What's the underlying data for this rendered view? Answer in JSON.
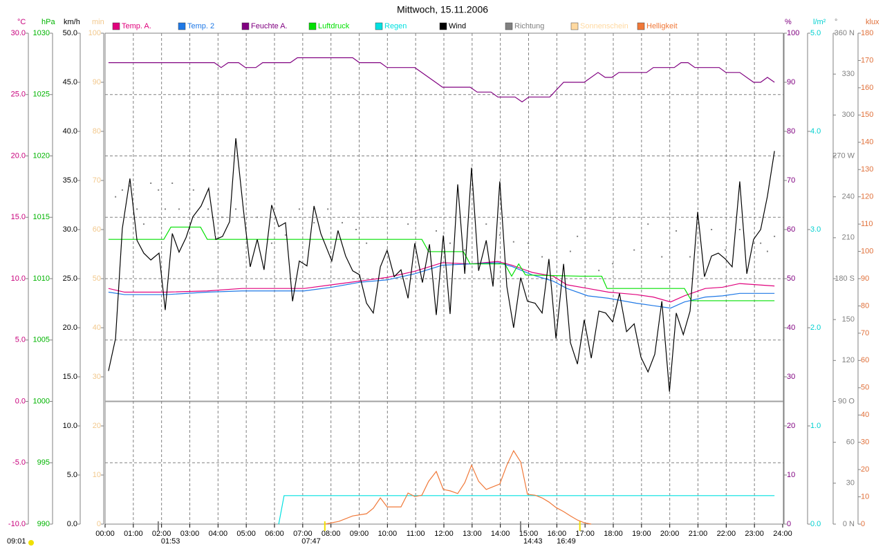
{
  "chart_data": {
    "type": "line",
    "title": "Mittwoch, 15.11.2006",
    "xlim": [
      0,
      24
    ],
    "xticks": [
      {
        "value": 0,
        "label": "00:00"
      },
      {
        "value": 1,
        "label": "01:00"
      },
      {
        "value": 2,
        "label": "02:00"
      },
      {
        "value": 3,
        "label": "03:00"
      },
      {
        "value": 4,
        "label": "04:00"
      },
      {
        "value": 5,
        "label": "05:00"
      },
      {
        "value": 6,
        "label": "06:00"
      },
      {
        "value": 7,
        "label": "07:00"
      },
      {
        "value": 8,
        "label": "08:00"
      },
      {
        "value": 9,
        "label": "09:00"
      },
      {
        "value": 10,
        "label": "10:00"
      },
      {
        "value": 11,
        "label": "11:00"
      },
      {
        "value": 12,
        "label": "12:00"
      },
      {
        "value": 13,
        "label": "13:00"
      },
      {
        "value": 14,
        "label": "14:00"
      },
      {
        "value": 15,
        "label": "15:00"
      },
      {
        "value": 16,
        "label": "16:00"
      },
      {
        "value": 17,
        "label": "17:00"
      },
      {
        "value": 18,
        "label": "18:00"
      },
      {
        "value": 19,
        "label": "19:00"
      },
      {
        "value": 20,
        "label": "20:00"
      },
      {
        "value": 21,
        "label": "21:00"
      },
      {
        "value": 22,
        "label": "22:00"
      },
      {
        "value": 23,
        "label": "23:00"
      },
      {
        "value": 24,
        "label": "24:00"
      }
    ],
    "grid": true,
    "axes": {
      "celsius": {
        "label": "°C",
        "color": "#c8007c",
        "lim": [
          -10,
          30
        ],
        "ticks": [
          {
            "value": -10,
            "label": "-10.0"
          },
          {
            "value": -5,
            "label": "-5.0"
          },
          {
            "value": 0,
            "label": "0.0"
          },
          {
            "value": 5,
            "label": "5.0"
          },
          {
            "value": 10,
            "label": "10.0"
          },
          {
            "value": 15,
            "label": "15.0"
          },
          {
            "value": 20,
            "label": "20.0"
          },
          {
            "value": 25,
            "label": "25.0"
          },
          {
            "value": 30,
            "label": "30.0"
          }
        ]
      },
      "hpa": {
        "label": "hPa",
        "color": "#00b400",
        "lim": [
          990,
          1030
        ],
        "ticks": [
          990,
          995,
          1000,
          1005,
          1010,
          1015,
          1020,
          1025,
          1030
        ]
      },
      "kmh": {
        "label": "km/h",
        "color": "#000000",
        "lim": [
          0,
          50
        ],
        "ticks": [
          {
            "value": 0,
            "label": "0.0"
          },
          {
            "value": 5,
            "label": "5.0"
          },
          {
            "value": 10,
            "label": "10.0"
          },
          {
            "value": 15,
            "label": "15.0"
          },
          {
            "value": 20,
            "label": "20.0"
          },
          {
            "value": 25,
            "label": "25.0"
          },
          {
            "value": 30,
            "label": "30.0"
          },
          {
            "value": 35,
            "label": "35.0"
          },
          {
            "value": 40,
            "label": "40.0"
          },
          {
            "value": 45,
            "label": "45.0"
          },
          {
            "value": 50,
            "label": "50.0"
          }
        ]
      },
      "min": {
        "label": "min",
        "color": "#f2c88c",
        "lim": [
          0,
          100
        ],
        "ticks": [
          0,
          10,
          20,
          30,
          40,
          50,
          60,
          70,
          80,
          90,
          100
        ]
      },
      "pct": {
        "label": "%",
        "color": "#800080",
        "lim": [
          0,
          100
        ],
        "ticks": [
          0,
          10,
          20,
          30,
          40,
          50,
          60,
          70,
          80,
          90,
          100
        ]
      },
      "lm2": {
        "label": "l/m²",
        "color": "#00d0d0",
        "lim": [
          0,
          5
        ],
        "ticks": [
          {
            "value": 0,
            "label": "0.0"
          },
          {
            "value": 1,
            "label": "1.0"
          },
          {
            "value": 2,
            "label": "2.0"
          },
          {
            "value": 3,
            "label": "3.0"
          },
          {
            "value": 4,
            "label": "4.0"
          },
          {
            "value": 5,
            "label": "5.0"
          }
        ]
      },
      "deg": {
        "label": "°",
        "color": "#808080",
        "lim": [
          0,
          360
        ],
        "ticks": [
          {
            "value": 0,
            "label": "0 N"
          },
          30,
          60,
          {
            "value": 90,
            "label": "90 O"
          },
          120,
          150,
          {
            "value": 180,
            "label": "180 S"
          },
          210,
          240,
          {
            "value": 270,
            "label": "270 W"
          },
          300,
          330,
          {
            "value": 360,
            "label": "360 N"
          }
        ]
      },
      "klux": {
        "label": "klux",
        "color": "#e0703a",
        "lim": [
          0,
          180
        ],
        "ticks": [
          0,
          10,
          20,
          30,
          40,
          50,
          60,
          70,
          80,
          90,
          100,
          110,
          120,
          130,
          140,
          150,
          160,
          170,
          180
        ]
      }
    },
    "series": [
      {
        "name": "Temp. A.",
        "color": "#e0007c",
        "axis": "celsius",
        "x": [
          0.12,
          0.69,
          2.16,
          3.62,
          4.85,
          7.05,
          8.03,
          9.01,
          9.99,
          10.97,
          11.95,
          12.93,
          13.91,
          14.4,
          15.14,
          15.87,
          16.36,
          17.1,
          17.83,
          18.81,
          19.42,
          20.03,
          20.52,
          21.26,
          21.87,
          22.48,
          23.71
        ],
        "values": [
          9.2,
          8.9,
          8.9,
          9.0,
          9.2,
          9.2,
          9.5,
          9.8,
          10.1,
          10.6,
          11.3,
          11.2,
          11.4,
          11.1,
          10.5,
          10.2,
          9.5,
          9.2,
          8.9,
          8.7,
          8.5,
          8.1,
          8.6,
          9.2,
          9.3,
          9.6,
          9.4
        ]
      },
      {
        "name": "Temp. 2",
        "color": "#1e78e6",
        "axis": "celsius",
        "x": [
          0.12,
          0.69,
          2.16,
          3.62,
          4.85,
          7.05,
          8.03,
          9.01,
          9.99,
          10.97,
          11.95,
          12.93,
          13.91,
          14.4,
          15.14,
          15.87,
          16.36,
          17.1,
          17.83,
          18.81,
          19.42,
          20.03,
          20.52,
          21.26,
          21.87,
          22.48,
          23.71
        ],
        "values": [
          8.9,
          8.7,
          8.7,
          8.9,
          9.0,
          9.0,
          9.3,
          9.7,
          9.9,
          10.4,
          11.1,
          11.2,
          11.3,
          11.0,
          10.3,
          9.8,
          9.2,
          8.6,
          8.4,
          8.0,
          7.8,
          7.6,
          8.1,
          8.5,
          8.6,
          8.8,
          8.8
        ]
      },
      {
        "name": "Feuchte A.",
        "color": "#800080",
        "axis": "pct",
        "x": [
          0.12,
          3.87,
          4.11,
          4.36,
          4.73,
          4.97,
          5.34,
          5.58,
          6.56,
          6.81,
          8.77,
          9.01,
          9.75,
          9.99,
          10.97,
          11.95,
          12.93,
          13.18,
          13.67,
          13.91,
          14.52,
          14.77,
          15.01,
          15.75,
          16.24,
          16.61,
          16.97,
          17.46,
          17.71,
          17.95,
          18.2,
          19.18,
          19.42,
          20.16,
          20.4,
          20.65,
          20.89,
          21.75,
          21.99,
          22.48,
          22.97,
          23.22,
          23.46,
          23.71
        ],
        "values": [
          94,
          94,
          93,
          94,
          94,
          93,
          93,
          94,
          94,
          95,
          95,
          94,
          94,
          93,
          93,
          89,
          89,
          88,
          88,
          87,
          87,
          86,
          87,
          87,
          90,
          90,
          90,
          92,
          91,
          91,
          92,
          92,
          93,
          93,
          94,
          94,
          93,
          93,
          92,
          92,
          90,
          90,
          91,
          90
        ]
      },
      {
        "name": "Luftdruck",
        "color": "#00e000",
        "axis": "hpa",
        "x": [
          0.12,
          2.08,
          2.33,
          3.38,
          3.62,
          11.22,
          11.46,
          12.69,
          12.93,
          14.16,
          14.4,
          14.65,
          14.89,
          16.85,
          17.59,
          17.78,
          20.52,
          20.77,
          23.71
        ],
        "values": [
          1013.2,
          1013.2,
          1014.2,
          1014.2,
          1013.2,
          1013.2,
          1012.2,
          1012.2,
          1011.2,
          1011.2,
          1010.2,
          1011.2,
          1010.3,
          1010.2,
          1010.2,
          1009.2,
          1009.2,
          1008.2,
          1008.2
        ]
      },
      {
        "name": "Regen",
        "color": "#00e0e0",
        "axis": "lm2",
        "x": [
          6.15,
          6.34,
          23.71
        ],
        "values": [
          0,
          0.29,
          0.29
        ]
      },
      {
        "name": "Wind",
        "color": "#000000",
        "axis": "kmh",
        "x": [
          0.12,
          0.37,
          0.61,
          0.88,
          1.13,
          1.37,
          1.62,
          1.91,
          2.13,
          2.38,
          2.62,
          2.87,
          3.11,
          3.4,
          3.67,
          3.92,
          4.16,
          4.41,
          4.63,
          4.9,
          5.14,
          5.39,
          5.63,
          5.9,
          6.15,
          6.39,
          6.64,
          6.88,
          7.15,
          7.4,
          7.64,
          8.03,
          8.25,
          8.52,
          8.77,
          9.01,
          9.26,
          9.5,
          9.75,
          9.99,
          10.24,
          10.48,
          10.73,
          10.97,
          11.24,
          11.49,
          11.73,
          11.98,
          12.22,
          12.49,
          12.74,
          12.98,
          13.23,
          13.5,
          13.74,
          13.98,
          14.23,
          14.47,
          14.72,
          14.96,
          15.23,
          15.48,
          15.72,
          15.97,
          16.24,
          16.48,
          16.73,
          16.97,
          17.22,
          17.49,
          17.73,
          17.98,
          18.22,
          18.47,
          18.74,
          18.98,
          19.23,
          19.47,
          19.72,
          19.99,
          20.23,
          20.48,
          20.72,
          20.99,
          21.23,
          21.48,
          21.72,
          21.97,
          22.21,
          22.48,
          22.73,
          22.97,
          23.22,
          23.46,
          23.71
        ],
        "values": [
          15.6,
          18.9,
          30.1,
          35.2,
          28.9,
          27.6,
          26.9,
          27.6,
          21.8,
          29.6,
          27.7,
          29.2,
          31.3,
          32.4,
          34.2,
          29.0,
          29.3,
          30.8,
          39.3,
          32.0,
          26.2,
          29.0,
          25.9,
          32.5,
          30.3,
          30.7,
          22.7,
          26.8,
          26.3,
          32.4,
          29.6,
          26.8,
          29.9,
          27.3,
          25.8,
          25.4,
          22.5,
          21.5,
          26.2,
          27.9,
          25.2,
          25.9,
          23.0,
          28.6,
          24.6,
          28.5,
          21.3,
          29.4,
          21.4,
          34.6,
          25.5,
          36.3,
          25.8,
          28.9,
          24.2,
          34.9,
          24.2,
          20.0,
          25.1,
          22.7,
          22.5,
          21.5,
          27.0,
          18.9,
          26.5,
          18.5,
          16.3,
          20.8,
          16.9,
          21.7,
          21.5,
          20.6,
          23.5,
          19.6,
          20.4,
          17.0,
          15.5,
          17.3,
          22.7,
          13.5,
          21.5,
          19.3,
          21.7,
          31.8,
          25.2,
          27.3,
          27.6,
          27.0,
          26.2,
          34.9,
          25.5,
          29.0,
          30.0,
          33.4,
          38.0
        ]
      },
      {
        "name": "Richtung",
        "color": "#808080",
        "axis": "deg",
        "type": "scatter",
        "x": [
          0.37,
          0.61,
          0.88,
          1.13,
          1.37,
          1.62,
          1.89,
          2.13,
          2.38,
          2.62,
          3.13,
          3.65,
          3.89,
          4.14,
          4.63,
          4.9,
          5.39,
          5.9,
          6.39,
          6.88,
          7.4,
          7.89,
          8.4,
          8.89,
          9.26,
          9.99,
          10.73,
          11.73,
          12.22,
          12.74,
          13.5,
          13.98,
          14.47,
          14.99,
          15.48,
          16.48,
          16.73,
          17.49,
          17.98,
          18.74,
          19.23,
          19.72,
          20.23,
          20.72,
          21.48,
          21.97,
          22.48,
          22.97,
          23.22,
          23.46,
          23.71
        ],
        "values": [
          240,
          245,
          248,
          231,
          220,
          250,
          245,
          231,
          250,
          231,
          245,
          231,
          212,
          225,
          231,
          225,
          225,
          206,
          212,
          231,
          221,
          231,
          221,
          216,
          206,
          201,
          220,
          215,
          206,
          201,
          220,
          212,
          207,
          206,
          196,
          200,
          211,
          186,
          191,
          201,
          220,
          196,
          215,
          196,
          216,
          201,
          216,
          206,
          206,
          200,
          211
        ]
      },
      {
        "name": "Sonnenschein",
        "color": "#ffd9a0",
        "axis": "min",
        "x": [],
        "values": []
      },
      {
        "name": "Helligkeit",
        "color": "#f07838",
        "axis": "klux",
        "x": [
          7.79,
          8.28,
          8.77,
          9.26,
          9.5,
          9.75,
          9.99,
          10.48,
          10.73,
          10.97,
          11.22,
          11.46,
          11.73,
          11.98,
          12.22,
          12.49,
          12.74,
          12.98,
          13.23,
          13.5,
          13.74,
          13.98,
          14.23,
          14.47,
          14.72,
          14.96,
          15.23,
          15.48,
          15.72,
          15.97,
          16.24,
          16.48,
          16.73,
          16.97,
          17.22
        ],
        "values": [
          0,
          1.0,
          3.0,
          3.8,
          5.8,
          9.6,
          6.3,
          6.3,
          11.4,
          10.1,
          10.6,
          15.7,
          19.3,
          12.7,
          12.2,
          11.2,
          15.2,
          21.6,
          15.7,
          12.7,
          13.7,
          14.7,
          21.6,
          26.9,
          22.8,
          10.9,
          10.6,
          9.6,
          8.1,
          6.1,
          4.6,
          3.0,
          1.5,
          0.5,
          0
        ]
      }
    ],
    "day_length": "09:01",
    "annotations": [
      {
        "value": 1.883,
        "label": "01:53",
        "color": "#808080"
      },
      {
        "value": 7.783,
        "label": "07:47",
        "color": "#f0e000"
      },
      {
        "value": 14.717,
        "label": "14:43",
        "color": "#808080"
      },
      {
        "value": 16.817,
        "label": "16:49",
        "color": "#f0e000"
      }
    ]
  }
}
